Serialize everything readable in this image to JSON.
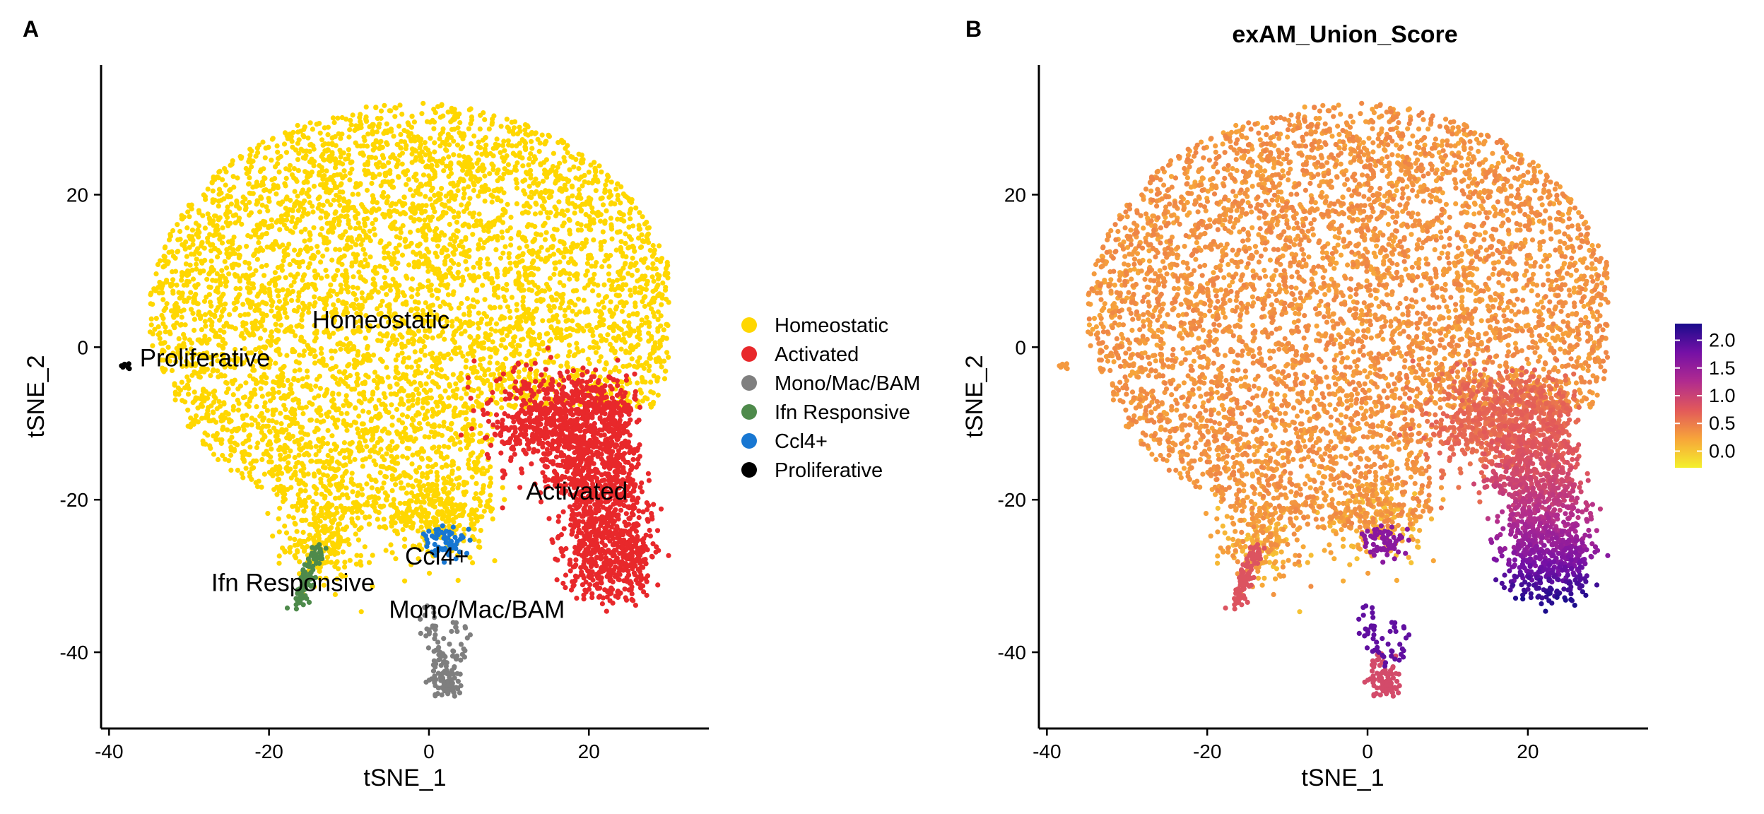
{
  "panels": {
    "a": {
      "label": "A"
    },
    "b": {
      "label": "B",
      "title": "exAM_Union_Score"
    }
  },
  "chart_data": [
    {
      "type": "scatter",
      "panel": "A",
      "xlabel": "tSNE_1",
      "ylabel": "tSNE_2",
      "xlim": [
        -41,
        35
      ],
      "ylim": [
        -50,
        37
      ],
      "xticks": [
        -40,
        -20,
        0,
        20
      ],
      "yticks": [
        -40,
        -20,
        0,
        20
      ],
      "grid": false,
      "legend_position": "right",
      "legend": [
        {
          "name": "Homeostatic",
          "color": "#FFD700"
        },
        {
          "name": "Activated",
          "color": "#E8282B"
        },
        {
          "name": "Mono/Mac/BAM",
          "color": "#7F7F7F"
        },
        {
          "name": "Ifn Responsive",
          "color": "#4E8A4B"
        },
        {
          "name": "Ccl4+",
          "color": "#1877D2"
        },
        {
          "name": "Proliferative",
          "color": "#000000"
        }
      ],
      "clusters": [
        {
          "name": "Homeostatic",
          "label_at": [
            -6,
            2.5
          ],
          "center": [
            -2,
            5
          ],
          "spread": [
            17,
            15
          ],
          "approx_points": 6000
        },
        {
          "name": "Activated",
          "label_at": [
            18.5,
            -20
          ],
          "center": [
            22,
            -18
          ],
          "spread": [
            4,
            8
          ],
          "approx_points": 1800
        },
        {
          "name": "Mono/Mac/BAM",
          "label_at": [
            6,
            -35.5
          ],
          "center": [
            3,
            -40
          ],
          "spread": [
            1.5,
            4
          ],
          "approx_points": 120
        },
        {
          "name": "Ifn Responsive",
          "label_at": [
            -17,
            -32
          ],
          "center": [
            -13,
            -30
          ],
          "spread": [
            1.2,
            3
          ],
          "approx_points": 90
        },
        {
          "name": "Ccl4+",
          "label_at": [
            1,
            -28.5
          ],
          "center": [
            3,
            -26
          ],
          "spread": [
            1.5,
            1.5
          ],
          "approx_points": 60
        },
        {
          "name": "Proliferative",
          "label_at": [
            -28,
            -2.5
          ],
          "center": [
            -38,
            -2.5
          ],
          "spread": [
            0.4,
            0.3
          ],
          "approx_points": 8
        }
      ]
    },
    {
      "type": "scatter",
      "panel": "B",
      "title": "exAM_Union_Score",
      "xlabel": "tSNE_1",
      "ylabel": "tSNE_2",
      "xlim": [
        -41,
        35
      ],
      "ylim": [
        -50,
        37
      ],
      "xticks": [
        -40,
        -20,
        0,
        20
      ],
      "yticks": [
        -40,
        -20,
        0,
        20
      ],
      "grid": false,
      "color_scale": {
        "range": [
          -0.3,
          2.3
        ],
        "ticks": [
          "2.0",
          "1.5",
          "1.0",
          "0.5",
          "0.0"
        ],
        "tick_values": [
          2.0,
          1.5,
          1.0,
          0.5,
          0.0
        ],
        "colors": [
          "#F4F02C",
          "#F7A53A",
          "#E2595A",
          "#B02B8F",
          "#7510A6",
          "#1B0C8C"
        ]
      },
      "score_summary": {
        "homeostatic_region": 0.3,
        "activated_region_low": 0.6,
        "activated_region_high": 2.2,
        "mono_mac_bam_tips": 1.8
      }
    }
  ]
}
